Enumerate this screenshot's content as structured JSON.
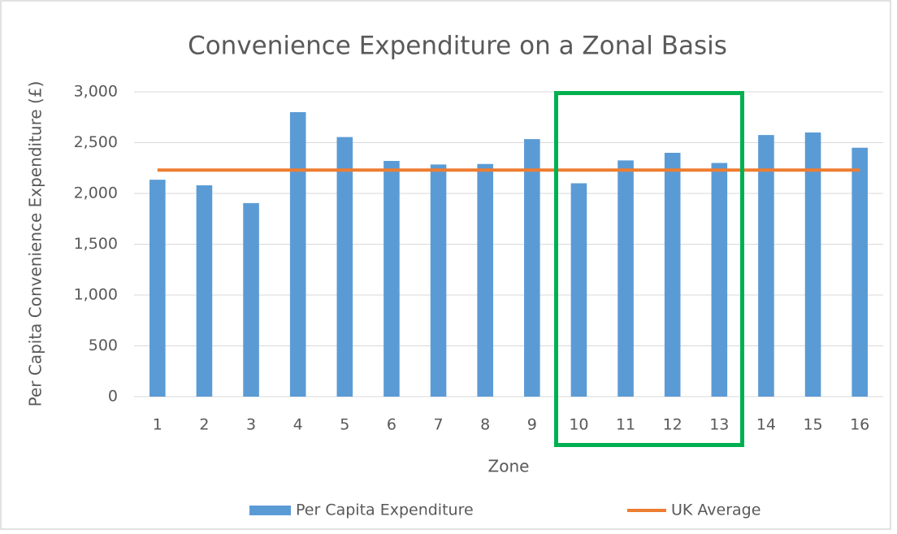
{
  "chart_data": {
    "type": "bar",
    "title": "Convenience Expenditure on a Zonal Basis",
    "x_label": "Zone",
    "y_label": "Per Capita Convenience Expenditure (£)",
    "categories": [
      "1",
      "2",
      "3",
      "4",
      "5",
      "6",
      "7",
      "8",
      "9",
      "10",
      "11",
      "12",
      "13",
      "14",
      "15",
      "16"
    ],
    "series": [
      {
        "name": "Per Capita Expenditure",
        "type": "bar",
        "color": "#5b9bd5",
        "values": [
          2135,
          2080,
          1905,
          2800,
          2555,
          2320,
          2285,
          2290,
          2535,
          2100,
          2325,
          2400,
          2300,
          2575,
          2600,
          2450
        ]
      },
      {
        "name": "UK Average",
        "type": "line",
        "color": "#ed7d31",
        "values": [
          2230,
          2230,
          2230,
          2230,
          2230,
          2230,
          2230,
          2230,
          2230,
          2230,
          2230,
          2230,
          2230,
          2230,
          2230,
          2230
        ]
      }
    ],
    "ylim": [
      0,
      3000
    ],
    "yticks": [
      0,
      500,
      {
        "value": 1000,
        "label": "1,000"
      },
      {
        "value": 1500,
        "label": "1,500"
      },
      {
        "value": 2000,
        "label": "2,000"
      },
      {
        "value": 2500,
        "label": "2,500"
      },
      {
        "value": 3000,
        "label": "3,000"
      }
    ],
    "grid": true,
    "legend": "bottom"
  }
}
